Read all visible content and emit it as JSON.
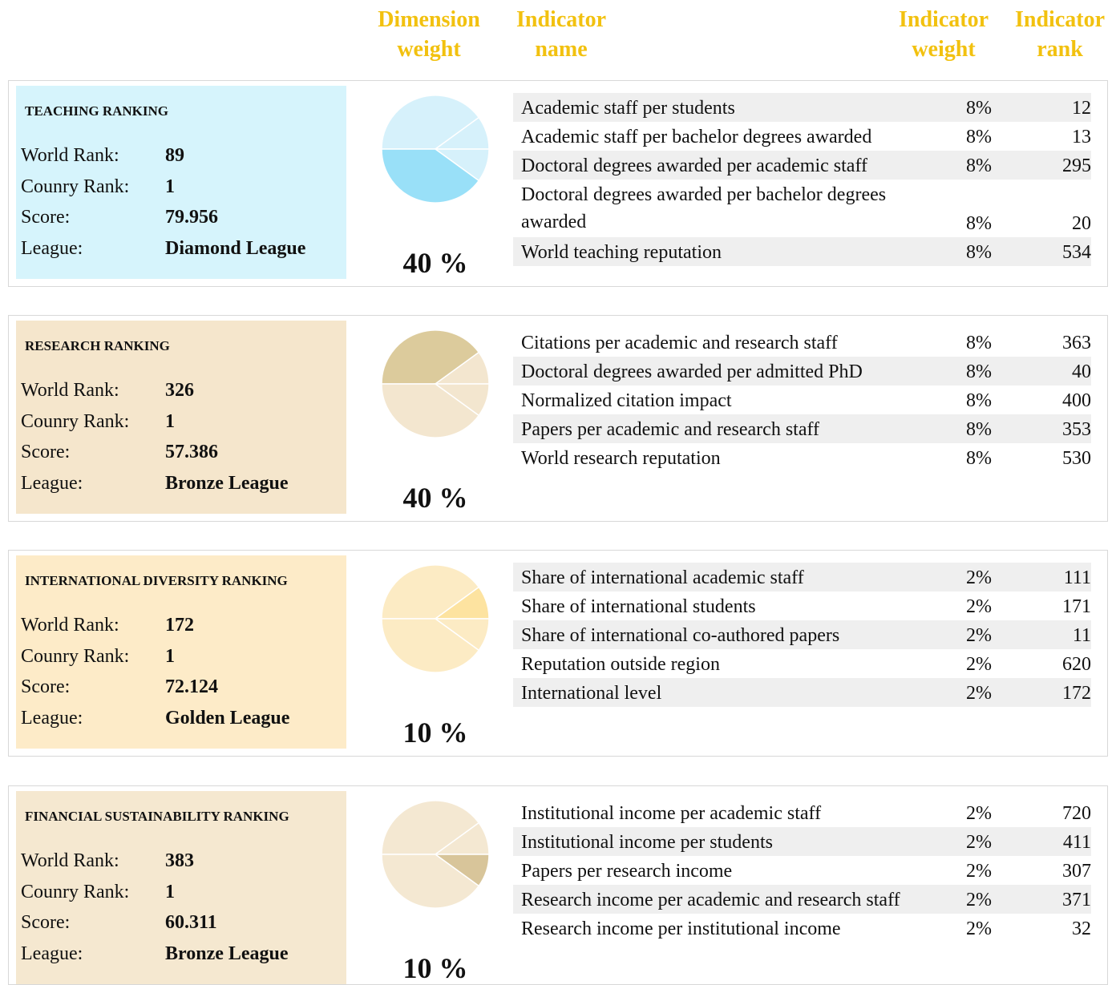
{
  "header": {
    "dimension_weight": [
      "Dimension",
      "weight"
    ],
    "indicator_name": [
      "Indicator",
      "name"
    ],
    "indicator_weight": [
      "Indicator",
      "weight"
    ],
    "indicator_rank": [
      "Indicator",
      "rank"
    ]
  },
  "row_labels": {
    "world_rank": "World Rank:",
    "country_rank": "Counry Rank:",
    "score": "Score:",
    "league": "League:"
  },
  "sections": [
    {
      "title": "TEACHING RANKING",
      "world_rank": 89,
      "country_rank": 1,
      "score": 79.956,
      "league": "Diamond League",
      "weight": 40,
      "weight_label": "40 %",
      "indicators": [
        [
          "Academic staff per students",
          "8%",
          12
        ],
        [
          "Academic staff per bachelor degrees awarded",
          "8%",
          13
        ],
        [
          "Doctoral degrees awarded per academic staff",
          "8%",
          295
        ],
        [
          "Doctoral degrees awarded per bachelor degrees awarded",
          "8%",
          20
        ],
        [
          "World teaching reputation",
          "8%",
          534
        ]
      ]
    },
    {
      "title": "RESEARCH RANKING",
      "world_rank": 326,
      "country_rank": 1,
      "score": 57.386,
      "league": "Bronze League",
      "weight": 40,
      "weight_label": "40 %",
      "indicators": [
        [
          "Citations per academic and research staff",
          "8%",
          363
        ],
        [
          "Doctoral degrees awarded per admitted PhD",
          "8%",
          40
        ],
        [
          "Normalized citation impact",
          "8%",
          400
        ],
        [
          "Papers per academic and research staff",
          "8%",
          353
        ],
        [
          "World research reputation",
          "8%",
          530
        ]
      ]
    },
    {
      "title": "INTERNATIONAL DIVERSITY RANKING",
      "world_rank": 172,
      "country_rank": 1,
      "score": 72.124,
      "league": "Golden League",
      "weight": 10,
      "weight_label": "10 %",
      "indicators": [
        [
          "Share of international academic staff",
          "2%",
          111
        ],
        [
          "Share of international students",
          "2%",
          171
        ],
        [
          "Share of international co-authored papers",
          "2%",
          11
        ],
        [
          "Reputation outside region",
          "2%",
          620
        ],
        [
          "International level",
          "2%",
          172
        ]
      ]
    },
    {
      "title": "FINANCIAL SUSTAINABILITY RANKING",
      "world_rank": 383,
      "country_rank": 1,
      "score": 60.311,
      "league": "Bronze League",
      "weight": 10,
      "weight_label": "10 %",
      "indicators": [
        [
          "Institutional income per academic staff",
          "2%",
          720
        ],
        [
          "Institutional income per students",
          "2%",
          411
        ],
        [
          "Papers per research income",
          "2%",
          307
        ],
        [
          "Research income per academic and research staff",
          "2%",
          371
        ],
        [
          "Research income per institutional income",
          "2%",
          32
        ]
      ]
    }
  ]
}
